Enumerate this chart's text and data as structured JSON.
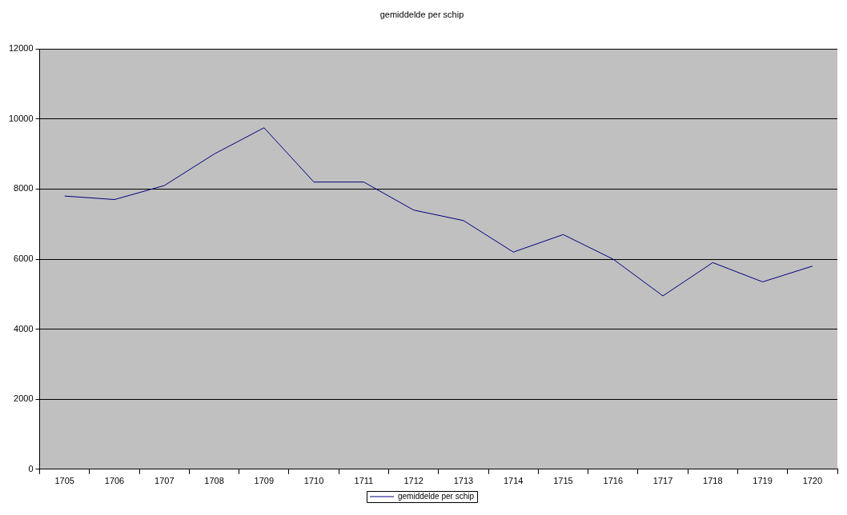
{
  "chart_data": {
    "type": "line",
    "title": "gemiddelde per schip",
    "categories": [
      "1705",
      "1706",
      "1707",
      "1708",
      "1709",
      "1710",
      "1711",
      "1712",
      "1713",
      "1714",
      "1715",
      "1716",
      "1717",
      "1718",
      "1719",
      "1720"
    ],
    "series": [
      {
        "name": "gemiddelde per schip",
        "color": "#000080",
        "values": [
          7800,
          7700,
          8100,
          9000,
          9750,
          8200,
          8200,
          7400,
          7100,
          6200,
          6700,
          6000,
          4950,
          5900,
          5350,
          5800
        ]
      }
    ],
    "ylim": [
      0,
      12000
    ],
    "yticks": [
      0,
      2000,
      4000,
      6000,
      8000,
      10000,
      12000
    ],
    "grid": "y",
    "legend": "bottom",
    "marker": "none"
  }
}
